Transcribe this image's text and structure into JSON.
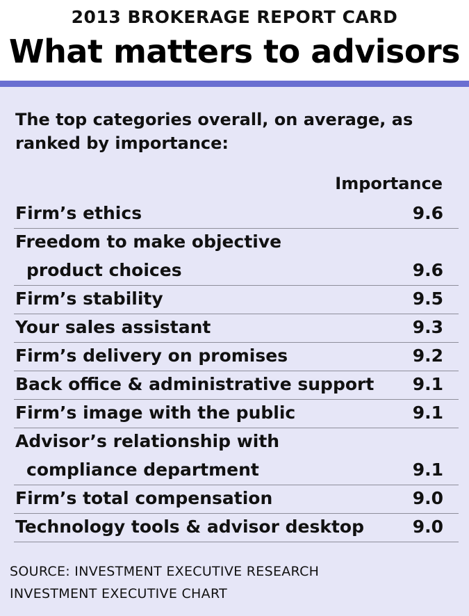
{
  "header": {
    "supertitle": "2013 BROKERAGE REPORT CARD",
    "title": "What matters to advisors"
  },
  "intro_line1": "The top categories overall, on average, as",
  "intro_line2": "ranked by importance:",
  "column_header": "Importance",
  "colors": {
    "accent_bar": "#6a6fd1",
    "panel_background": "#e6e6f7"
  },
  "chart_data": {
    "type": "table",
    "title": "What matters to advisors",
    "columns": [
      "",
      "Importance"
    ],
    "rows": [
      {
        "label": [
          "Firm’s ethics"
        ],
        "value": "9.6"
      },
      {
        "label": [
          "Freedom to make objective",
          "product choices"
        ],
        "value": "9.6"
      },
      {
        "label": [
          "Firm’s stability"
        ],
        "value": "9.5"
      },
      {
        "label": [
          "Your sales assistant"
        ],
        "value": "9.3"
      },
      {
        "label": [
          "Firm’s delivery on promises"
        ],
        "value": "9.2"
      },
      {
        "label": [
          "Back office & administrative support"
        ],
        "value": "9.1"
      },
      {
        "label": [
          "Firm’s image with the public"
        ],
        "value": "9.1"
      },
      {
        "label": [
          "Advisor’s relationship with",
          "compliance department"
        ],
        "value": "9.1"
      },
      {
        "label": [
          "Firm’s total compensation"
        ],
        "value": "9.0"
      },
      {
        "label": [
          "Technology tools & advisor desktop"
        ],
        "value": "9.0"
      }
    ]
  },
  "footer": {
    "source": "SOURCE: INVESTMENT EXECUTIVE RESEARCH",
    "credit": "INVESTMENT EXECUTIVE CHART"
  }
}
